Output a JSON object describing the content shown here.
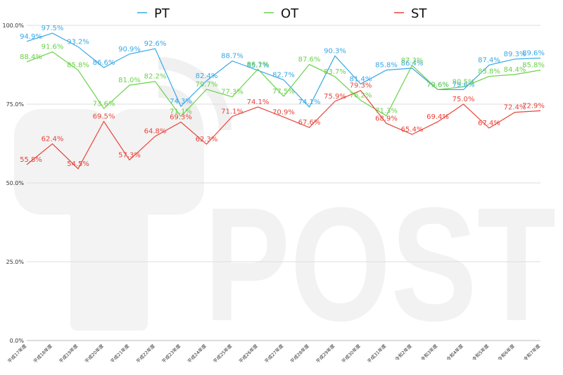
{
  "chart_data": {
    "type": "line",
    "categories": [
      "平成17年度",
      "平成18年度",
      "平成19年度",
      "平成20年度",
      "平成21年度",
      "平成22年度",
      "平成23年度",
      "平成24年度",
      "平成25年度",
      "平成26年度",
      "平成27年度",
      "平成28年度",
      "平成29年度",
      "平成30年度",
      "平成31年度",
      "令和2年度",
      "令和3年度",
      "令和4年度",
      "令和5年度",
      "令和6年度",
      "令和7年度"
    ],
    "series": [
      {
        "name": "PT",
        "color": "#37a8e6",
        "values": [
          94.9,
          97.5,
          93.2,
          86.6,
          90.9,
          92.6,
          74.3,
          82.4,
          88.7,
          85.7,
          82.7,
          74.1,
          90.3,
          81.4,
          85.8,
          86.4,
          79.6,
          79.6,
          87.4,
          89.3,
          89.6
        ],
        "labels": [
          "94.9%",
          "97.5%",
          "93.2%",
          "86.6%",
          "90.9%",
          "92.6%",
          "74.3%",
          "82.4%",
          "88.7%",
          "85.7%",
          "82.7%",
          "74.1%",
          "90.3%",
          "81.4%",
          "85.8%",
          "86.4%",
          "79.6%",
          "79.6%",
          "87.4%",
          "89.3%",
          "89.6%"
        ]
      },
      {
        "name": "OT",
        "color": "#6ad14a",
        "values": [
          88.4,
          91.6,
          85.8,
          73.6,
          81.0,
          82.2,
          71.1,
          79.7,
          77.3,
          86.1,
          77.5,
          87.6,
          83.7,
          76.2,
          71.3,
          87.3,
          79.6,
          80.5,
          83.8,
          84.4,
          85.8
        ],
        "labels": [
          "88.4%",
          "91.6%",
          "85.8%",
          "73.6%",
          "81.0%",
          "82.2%",
          "71.1%",
          "79.7%",
          "77.3%",
          "86.1%",
          "77.5%",
          "87.6%",
          "83.7%",
          "76.2%",
          "71.3%",
          "87.3%",
          "79.6%",
          "80.5%",
          "83.8%",
          "84.4%",
          "85.8%"
        ]
      },
      {
        "name": "ST",
        "color": "#e8443a",
        "values": [
          55.8,
          62.4,
          54.5,
          69.5,
          57.3,
          64.8,
          69.3,
          62.3,
          71.1,
          74.1,
          70.9,
          67.6,
          75.9,
          79.3,
          68.9,
          65.4,
          69.4,
          75.0,
          67.4,
          72.4,
          72.9
        ],
        "labels": [
          "55.8%",
          "62.4%",
          "54.5%",
          "69.5%",
          "57.3%",
          "64.8%",
          "69.3%",
          "62.3%",
          "71.1%",
          "74.1%",
          "70.9%",
          "67.6%",
          "75.9%",
          "79.3%",
          "68.9%",
          "65.4%",
          "69.4%",
          "75.0%",
          "67.4%",
          "72.4%",
          "72.9%"
        ]
      }
    ],
    "yticks": [
      0,
      25,
      50,
      75,
      100
    ],
    "ytick_labels": [
      "0.0%",
      "25.0%",
      "50.0%",
      "75.0%",
      "100.0%"
    ],
    "ylim": [
      0,
      100
    ],
    "grid": true,
    "legend": "top",
    "watermark": "POST"
  }
}
